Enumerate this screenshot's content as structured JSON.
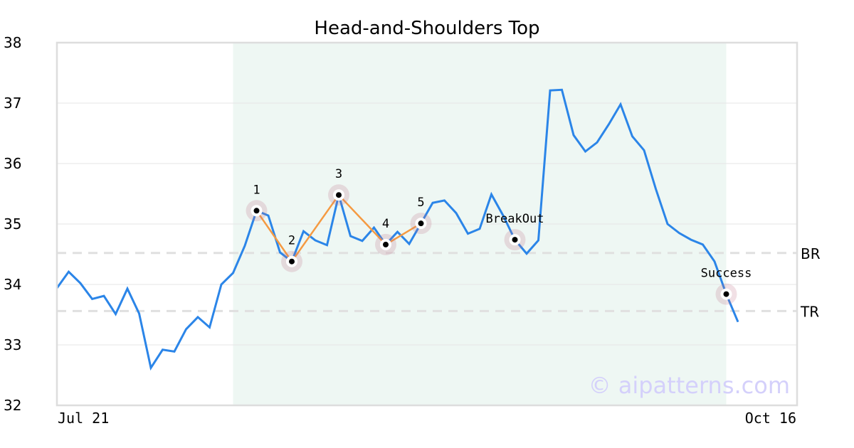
{
  "chart_data": {
    "type": "line",
    "title": "Head-and-Shoulders Top",
    "ylim": [
      32,
      38
    ],
    "yticks": [
      "32",
      "33",
      "34",
      "35",
      "36",
      "37",
      "38"
    ],
    "xtick_labels": [
      "Jul 21",
      "Oct 16"
    ],
    "grid": true,
    "series": [
      {
        "color": "#2b85e8",
        "values": [
          33.94,
          34.21,
          34.02,
          33.76,
          33.81,
          33.51,
          33.93,
          33.52,
          32.62,
          32.92,
          32.89,
          33.26,
          33.46,
          33.29,
          34.0,
          34.19,
          34.64,
          35.22,
          35.14,
          34.53,
          34.38,
          34.88,
          34.73,
          34.65,
          35.48,
          34.8,
          34.72,
          34.94,
          34.66,
          34.87,
          34.67,
          35.01,
          35.35,
          35.39,
          35.18,
          34.84,
          34.92,
          35.49,
          35.14,
          34.74,
          34.51,
          34.73,
          37.21,
          37.22,
          36.47,
          36.2,
          36.35,
          36.65,
          36.98,
          36.45,
          36.22,
          35.58,
          35.0,
          34.85,
          34.74,
          34.66,
          34.38,
          33.84,
          33.38
        ]
      }
    ],
    "pattern_region": {
      "start_index": 15,
      "end_index": 57,
      "color": "#eef7f3"
    },
    "pattern_points": [
      {
        "label": "1",
        "index": 17,
        "value": 35.22
      },
      {
        "label": "2",
        "index": 20,
        "value": 34.38
      },
      {
        "label": "3",
        "index": 24,
        "value": 35.48
      },
      {
        "label": "4",
        "index": 28,
        "value": 34.66
      },
      {
        "label": "5",
        "index": 31,
        "value": 35.01
      }
    ],
    "pattern_line_color": "#f59a42",
    "events": [
      {
        "label": "BreakOut",
        "index": 39,
        "value": 34.74
      },
      {
        "label": "Success",
        "index": 57,
        "value": 33.84
      }
    ],
    "levels": [
      {
        "label": "BR",
        "value": 34.52
      },
      {
        "label": "TR",
        "value": 33.56
      }
    ]
  },
  "watermark": "© aipatterns.com"
}
